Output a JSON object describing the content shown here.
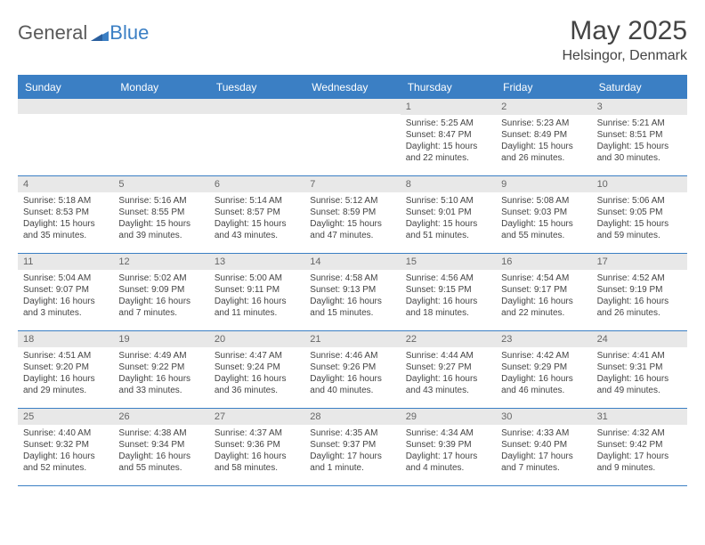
{
  "logo": {
    "word1": "General",
    "word2": "Blue"
  },
  "title": "May 2025",
  "location": "Helsingor, Denmark",
  "colors": {
    "accent": "#3b7fc4",
    "daynum_bg": "#e8e8e8",
    "text": "#444444"
  },
  "day_headers": [
    "Sunday",
    "Monday",
    "Tuesday",
    "Wednesday",
    "Thursday",
    "Friday",
    "Saturday"
  ],
  "weeks": [
    [
      null,
      null,
      null,
      null,
      {
        "n": "1",
        "sr": "Sunrise: 5:25 AM",
        "ss": "Sunset: 8:47 PM",
        "dl1": "Daylight: 15 hours",
        "dl2": "and 22 minutes."
      },
      {
        "n": "2",
        "sr": "Sunrise: 5:23 AM",
        "ss": "Sunset: 8:49 PM",
        "dl1": "Daylight: 15 hours",
        "dl2": "and 26 minutes."
      },
      {
        "n": "3",
        "sr": "Sunrise: 5:21 AM",
        "ss": "Sunset: 8:51 PM",
        "dl1": "Daylight: 15 hours",
        "dl2": "and 30 minutes."
      }
    ],
    [
      {
        "n": "4",
        "sr": "Sunrise: 5:18 AM",
        "ss": "Sunset: 8:53 PM",
        "dl1": "Daylight: 15 hours",
        "dl2": "and 35 minutes."
      },
      {
        "n": "5",
        "sr": "Sunrise: 5:16 AM",
        "ss": "Sunset: 8:55 PM",
        "dl1": "Daylight: 15 hours",
        "dl2": "and 39 minutes."
      },
      {
        "n": "6",
        "sr": "Sunrise: 5:14 AM",
        "ss": "Sunset: 8:57 PM",
        "dl1": "Daylight: 15 hours",
        "dl2": "and 43 minutes."
      },
      {
        "n": "7",
        "sr": "Sunrise: 5:12 AM",
        "ss": "Sunset: 8:59 PM",
        "dl1": "Daylight: 15 hours",
        "dl2": "and 47 minutes."
      },
      {
        "n": "8",
        "sr": "Sunrise: 5:10 AM",
        "ss": "Sunset: 9:01 PM",
        "dl1": "Daylight: 15 hours",
        "dl2": "and 51 minutes."
      },
      {
        "n": "9",
        "sr": "Sunrise: 5:08 AM",
        "ss": "Sunset: 9:03 PM",
        "dl1": "Daylight: 15 hours",
        "dl2": "and 55 minutes."
      },
      {
        "n": "10",
        "sr": "Sunrise: 5:06 AM",
        "ss": "Sunset: 9:05 PM",
        "dl1": "Daylight: 15 hours",
        "dl2": "and 59 minutes."
      }
    ],
    [
      {
        "n": "11",
        "sr": "Sunrise: 5:04 AM",
        "ss": "Sunset: 9:07 PM",
        "dl1": "Daylight: 16 hours",
        "dl2": "and 3 minutes."
      },
      {
        "n": "12",
        "sr": "Sunrise: 5:02 AM",
        "ss": "Sunset: 9:09 PM",
        "dl1": "Daylight: 16 hours",
        "dl2": "and 7 minutes."
      },
      {
        "n": "13",
        "sr": "Sunrise: 5:00 AM",
        "ss": "Sunset: 9:11 PM",
        "dl1": "Daylight: 16 hours",
        "dl2": "and 11 minutes."
      },
      {
        "n": "14",
        "sr": "Sunrise: 4:58 AM",
        "ss": "Sunset: 9:13 PM",
        "dl1": "Daylight: 16 hours",
        "dl2": "and 15 minutes."
      },
      {
        "n": "15",
        "sr": "Sunrise: 4:56 AM",
        "ss": "Sunset: 9:15 PM",
        "dl1": "Daylight: 16 hours",
        "dl2": "and 18 minutes."
      },
      {
        "n": "16",
        "sr": "Sunrise: 4:54 AM",
        "ss": "Sunset: 9:17 PM",
        "dl1": "Daylight: 16 hours",
        "dl2": "and 22 minutes."
      },
      {
        "n": "17",
        "sr": "Sunrise: 4:52 AM",
        "ss": "Sunset: 9:19 PM",
        "dl1": "Daylight: 16 hours",
        "dl2": "and 26 minutes."
      }
    ],
    [
      {
        "n": "18",
        "sr": "Sunrise: 4:51 AM",
        "ss": "Sunset: 9:20 PM",
        "dl1": "Daylight: 16 hours",
        "dl2": "and 29 minutes."
      },
      {
        "n": "19",
        "sr": "Sunrise: 4:49 AM",
        "ss": "Sunset: 9:22 PM",
        "dl1": "Daylight: 16 hours",
        "dl2": "and 33 minutes."
      },
      {
        "n": "20",
        "sr": "Sunrise: 4:47 AM",
        "ss": "Sunset: 9:24 PM",
        "dl1": "Daylight: 16 hours",
        "dl2": "and 36 minutes."
      },
      {
        "n": "21",
        "sr": "Sunrise: 4:46 AM",
        "ss": "Sunset: 9:26 PM",
        "dl1": "Daylight: 16 hours",
        "dl2": "and 40 minutes."
      },
      {
        "n": "22",
        "sr": "Sunrise: 4:44 AM",
        "ss": "Sunset: 9:27 PM",
        "dl1": "Daylight: 16 hours",
        "dl2": "and 43 minutes."
      },
      {
        "n": "23",
        "sr": "Sunrise: 4:42 AM",
        "ss": "Sunset: 9:29 PM",
        "dl1": "Daylight: 16 hours",
        "dl2": "and 46 minutes."
      },
      {
        "n": "24",
        "sr": "Sunrise: 4:41 AM",
        "ss": "Sunset: 9:31 PM",
        "dl1": "Daylight: 16 hours",
        "dl2": "and 49 minutes."
      }
    ],
    [
      {
        "n": "25",
        "sr": "Sunrise: 4:40 AM",
        "ss": "Sunset: 9:32 PM",
        "dl1": "Daylight: 16 hours",
        "dl2": "and 52 minutes."
      },
      {
        "n": "26",
        "sr": "Sunrise: 4:38 AM",
        "ss": "Sunset: 9:34 PM",
        "dl1": "Daylight: 16 hours",
        "dl2": "and 55 minutes."
      },
      {
        "n": "27",
        "sr": "Sunrise: 4:37 AM",
        "ss": "Sunset: 9:36 PM",
        "dl1": "Daylight: 16 hours",
        "dl2": "and 58 minutes."
      },
      {
        "n": "28",
        "sr": "Sunrise: 4:35 AM",
        "ss": "Sunset: 9:37 PM",
        "dl1": "Daylight: 17 hours",
        "dl2": "and 1 minute."
      },
      {
        "n": "29",
        "sr": "Sunrise: 4:34 AM",
        "ss": "Sunset: 9:39 PM",
        "dl1": "Daylight: 17 hours",
        "dl2": "and 4 minutes."
      },
      {
        "n": "30",
        "sr": "Sunrise: 4:33 AM",
        "ss": "Sunset: 9:40 PM",
        "dl1": "Daylight: 17 hours",
        "dl2": "and 7 minutes."
      },
      {
        "n": "31",
        "sr": "Sunrise: 4:32 AM",
        "ss": "Sunset: 9:42 PM",
        "dl1": "Daylight: 17 hours",
        "dl2": "and 9 minutes."
      }
    ]
  ]
}
